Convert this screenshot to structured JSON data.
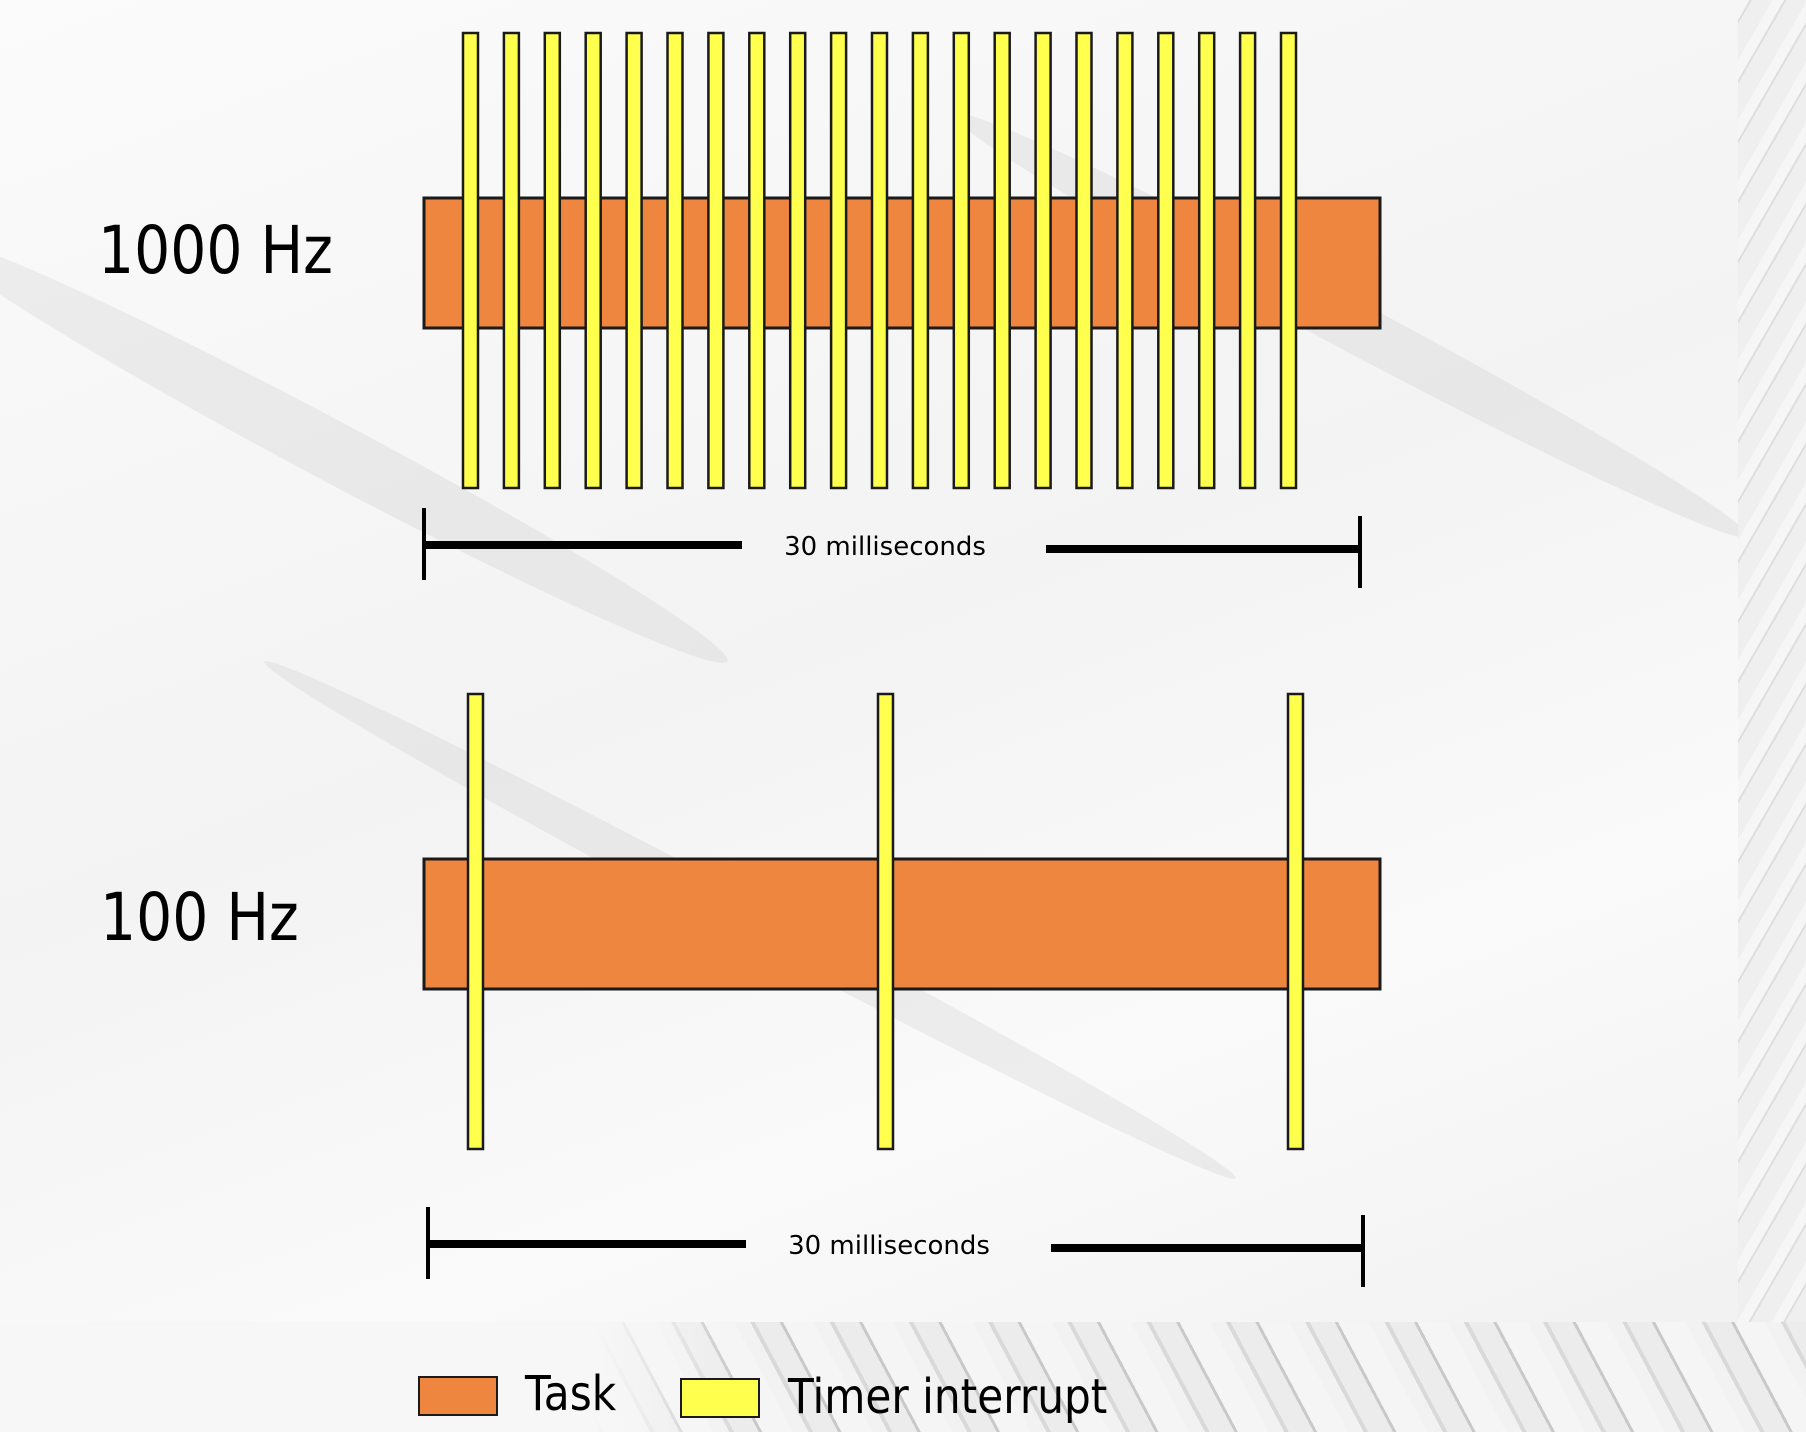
{
  "rows": [
    {
      "label": "1000 Hz",
      "span_label": "30 milliseconds",
      "interrupt_count": 21
    },
    {
      "label": "100 Hz",
      "span_label": "30 milliseconds",
      "interrupt_count": 3
    }
  ],
  "legend": {
    "task_label": "Task",
    "interrupt_label": "Timer interrupt"
  },
  "colors": {
    "task": "#ef8640",
    "interrupt": "#ffff4d",
    "outline": "#1a1a1a"
  }
}
